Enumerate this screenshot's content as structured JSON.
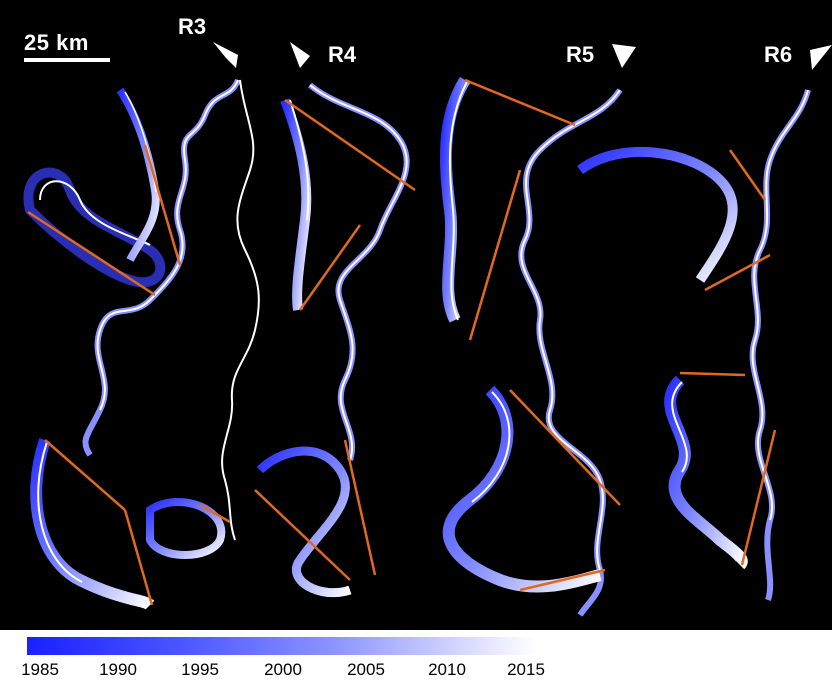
{
  "scale_label": "25 km",
  "reach_labels": [
    "R3",
    "R4",
    "R5",
    "R6"
  ],
  "colorbar": {
    "low_color": "#1a20ff",
    "high_color": "#ffffff",
    "ticks": [
      "1985",
      "1990",
      "1995",
      "2000",
      "2005",
      "2010",
      "2015"
    ]
  },
  "colors": {
    "background": "#000000",
    "cutoff_lines": "#e0691f"
  }
}
